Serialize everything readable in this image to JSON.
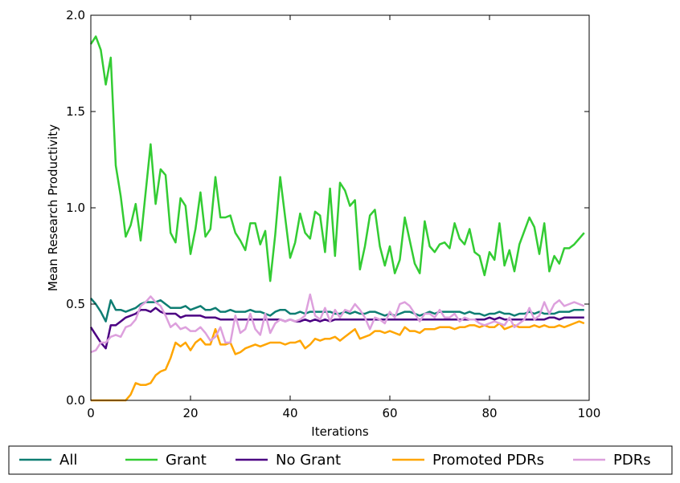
{
  "chart_data": {
    "type": "line",
    "title": "",
    "xlabel": "Iterations",
    "ylabel": "Mean Research Productivity",
    "xlim": [
      0,
      100
    ],
    "ylim": [
      0,
      2.0
    ],
    "xticks": [
      "0",
      "20",
      "40",
      "60",
      "80",
      "100"
    ],
    "yticks": [
      "0.0",
      "0.5",
      "1.0",
      "1.5",
      "2.0"
    ],
    "grid": false,
    "legend_position": "bottom-outside",
    "x": [
      0,
      1,
      2,
      3,
      4,
      5,
      6,
      7,
      8,
      9,
      10,
      11,
      12,
      13,
      14,
      15,
      16,
      17,
      18,
      19,
      20,
      21,
      22,
      23,
      24,
      25,
      26,
      27,
      28,
      29,
      30,
      31,
      32,
      33,
      34,
      35,
      36,
      37,
      38,
      39,
      40,
      41,
      42,
      43,
      44,
      45,
      46,
      47,
      48,
      49,
      50,
      51,
      52,
      53,
      54,
      55,
      56,
      57,
      58,
      59,
      60,
      61,
      62,
      63,
      64,
      65,
      66,
      67,
      68,
      69,
      70,
      71,
      72,
      73,
      74,
      75,
      76,
      77,
      78,
      79,
      80,
      81,
      82,
      83,
      84,
      85,
      86,
      87,
      88,
      89,
      90,
      91,
      92,
      93,
      94,
      95,
      96,
      97,
      98,
      99
    ],
    "series": [
      {
        "name": "All",
        "color": "#0e7d72",
        "values": [
          0.53,
          0.5,
          0.46,
          0.41,
          0.52,
          0.47,
          0.47,
          0.46,
          0.47,
          0.48,
          0.5,
          0.51,
          0.51,
          0.51,
          0.52,
          0.5,
          0.48,
          0.48,
          0.48,
          0.49,
          0.47,
          0.48,
          0.49,
          0.47,
          0.47,
          0.48,
          0.46,
          0.46,
          0.47,
          0.46,
          0.46,
          0.46,
          0.47,
          0.46,
          0.46,
          0.45,
          0.44,
          0.46,
          0.47,
          0.47,
          0.45,
          0.45,
          0.46,
          0.45,
          0.46,
          0.46,
          0.46,
          0.46,
          0.46,
          0.45,
          0.45,
          0.46,
          0.45,
          0.46,
          0.45,
          0.45,
          0.46,
          0.46,
          0.45,
          0.44,
          0.45,
          0.44,
          0.45,
          0.46,
          0.46,
          0.45,
          0.44,
          0.45,
          0.46,
          0.45,
          0.46,
          0.46,
          0.46,
          0.46,
          0.46,
          0.45,
          0.46,
          0.45,
          0.45,
          0.44,
          0.45,
          0.45,
          0.46,
          0.45,
          0.45,
          0.44,
          0.45,
          0.45,
          0.46,
          0.45,
          0.46,
          0.45,
          0.45,
          0.45,
          0.46,
          0.46,
          0.46,
          0.47,
          0.47,
          0.47
        ]
      },
      {
        "name": "Grant",
        "color": "#33cc33",
        "values": [
          1.85,
          1.89,
          1.82,
          1.64,
          1.78,
          1.22,
          1.06,
          0.85,
          0.91,
          1.02,
          0.83,
          1.08,
          1.33,
          1.02,
          1.2,
          1.17,
          0.87,
          0.82,
          1.05,
          1.01,
          0.76,
          0.89,
          1.08,
          0.85,
          0.89,
          1.16,
          0.95,
          0.95,
          0.96,
          0.87,
          0.83,
          0.78,
          0.92,
          0.92,
          0.81,
          0.88,
          0.62,
          0.86,
          1.16,
          0.95,
          0.74,
          0.82,
          0.97,
          0.87,
          0.84,
          0.98,
          0.96,
          0.77,
          1.1,
          0.75,
          1.13,
          1.09,
          1.01,
          1.04,
          0.68,
          0.8,
          0.96,
          0.99,
          0.8,
          0.7,
          0.8,
          0.66,
          0.73,
          0.95,
          0.83,
          0.71,
          0.66,
          0.93,
          0.8,
          0.77,
          0.81,
          0.82,
          0.79,
          0.92,
          0.84,
          0.81,
          0.89,
          0.77,
          0.75,
          0.65,
          0.77,
          0.73,
          0.92,
          0.7,
          0.78,
          0.67,
          0.81,
          0.88,
          0.95,
          0.9,
          0.76,
          0.92,
          0.67,
          0.75,
          0.71,
          0.79,
          0.79,
          0.81,
          0.84,
          0.87
        ]
      },
      {
        "name": "No Grant",
        "color": "#4b0082",
        "values": [
          0.38,
          0.34,
          0.3,
          0.27,
          0.39,
          0.39,
          0.41,
          0.43,
          0.44,
          0.45,
          0.47,
          0.47,
          0.46,
          0.48,
          0.46,
          0.45,
          0.45,
          0.45,
          0.43,
          0.44,
          0.44,
          0.44,
          0.44,
          0.43,
          0.43,
          0.43,
          0.42,
          0.42,
          0.42,
          0.42,
          0.42,
          0.42,
          0.42,
          0.42,
          0.42,
          0.42,
          0.42,
          0.42,
          0.42,
          0.41,
          0.42,
          0.41,
          0.41,
          0.42,
          0.41,
          0.42,
          0.41,
          0.42,
          0.41,
          0.42,
          0.42,
          0.42,
          0.42,
          0.42,
          0.42,
          0.42,
          0.42,
          0.42,
          0.42,
          0.42,
          0.42,
          0.42,
          0.42,
          0.42,
          0.42,
          0.42,
          0.42,
          0.42,
          0.42,
          0.42,
          0.42,
          0.42,
          0.42,
          0.42,
          0.42,
          0.42,
          0.42,
          0.42,
          0.42,
          0.42,
          0.43,
          0.42,
          0.43,
          0.42,
          0.42,
          0.42,
          0.42,
          0.42,
          0.42,
          0.42,
          0.42,
          0.42,
          0.43,
          0.43,
          0.42,
          0.43,
          0.43,
          0.43,
          0.43,
          0.43
        ]
      },
      {
        "name": "Promoted PDRs",
        "color": "#ffa500",
        "values": [
          0.0,
          0.0,
          0.0,
          0.0,
          0.0,
          0.0,
          0.0,
          0.0,
          0.03,
          0.09,
          0.08,
          0.08,
          0.09,
          0.13,
          0.15,
          0.16,
          0.22,
          0.3,
          0.28,
          0.3,
          0.26,
          0.3,
          0.32,
          0.29,
          0.29,
          0.37,
          0.29,
          0.29,
          0.3,
          0.24,
          0.25,
          0.27,
          0.28,
          0.29,
          0.28,
          0.29,
          0.3,
          0.3,
          0.3,
          0.29,
          0.3,
          0.3,
          0.31,
          0.27,
          0.29,
          0.32,
          0.31,
          0.32,
          0.32,
          0.33,
          0.31,
          0.33,
          0.35,
          0.37,
          0.32,
          0.33,
          0.34,
          0.36,
          0.36,
          0.35,
          0.36,
          0.35,
          0.34,
          0.38,
          0.36,
          0.36,
          0.35,
          0.37,
          0.37,
          0.37,
          0.38,
          0.38,
          0.38,
          0.37,
          0.38,
          0.38,
          0.39,
          0.39,
          0.38,
          0.39,
          0.38,
          0.38,
          0.4,
          0.37,
          0.38,
          0.39,
          0.38,
          0.38,
          0.38,
          0.39,
          0.38,
          0.39,
          0.38,
          0.38,
          0.39,
          0.38,
          0.39,
          0.4,
          0.41,
          0.4
        ]
      },
      {
        "name": "PDRs",
        "color": "#dda0dd",
        "values": [
          0.25,
          0.26,
          0.3,
          0.3,
          0.33,
          0.34,
          0.33,
          0.38,
          0.39,
          0.42,
          0.49,
          0.51,
          0.54,
          0.51,
          0.49,
          0.44,
          0.38,
          0.4,
          0.37,
          0.38,
          0.36,
          0.36,
          0.38,
          0.35,
          0.31,
          0.33,
          0.38,
          0.3,
          0.3,
          0.44,
          0.35,
          0.37,
          0.45,
          0.37,
          0.34,
          0.45,
          0.35,
          0.4,
          0.42,
          0.41,
          0.42,
          0.41,
          0.42,
          0.44,
          0.55,
          0.44,
          0.42,
          0.48,
          0.41,
          0.47,
          0.43,
          0.47,
          0.46,
          0.5,
          0.47,
          0.43,
          0.37,
          0.43,
          0.42,
          0.4,
          0.46,
          0.43,
          0.5,
          0.51,
          0.49,
          0.45,
          0.41,
          0.45,
          0.45,
          0.43,
          0.47,
          0.43,
          0.43,
          0.45,
          0.41,
          0.43,
          0.42,
          0.42,
          0.4,
          0.39,
          0.4,
          0.41,
          0.4,
          0.39,
          0.43,
          0.38,
          0.4,
          0.42,
          0.48,
          0.42,
          0.44,
          0.51,
          0.45,
          0.5,
          0.52,
          0.49,
          0.5,
          0.51,
          0.5,
          0.49
        ]
      }
    ]
  }
}
